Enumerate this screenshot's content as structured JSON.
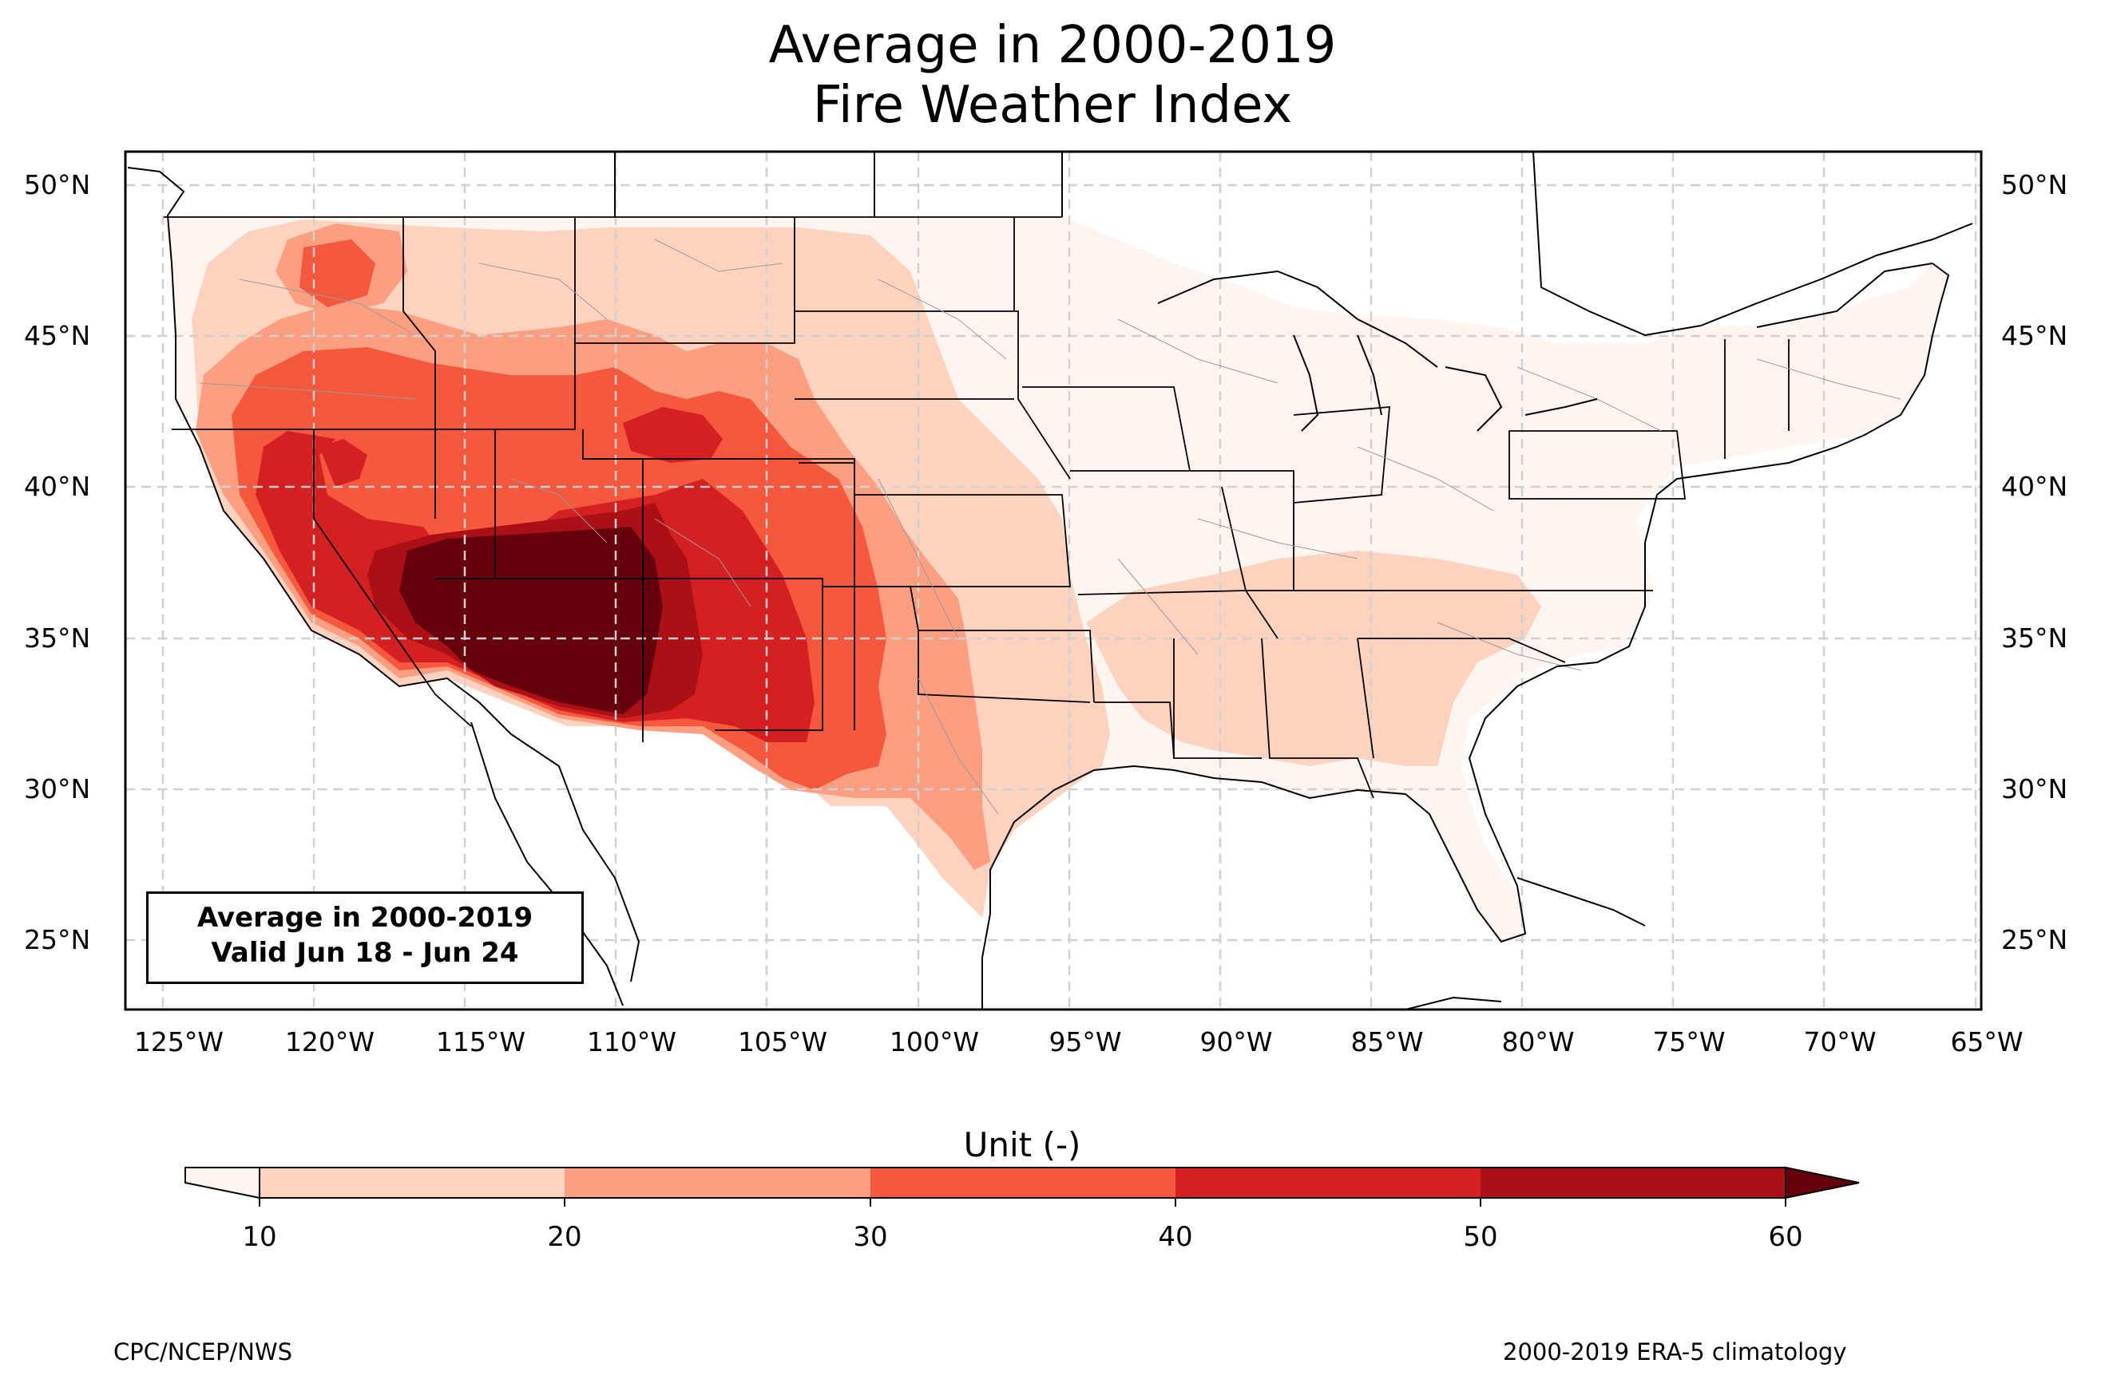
{
  "title": {
    "line1": "Average in 2000-2019",
    "line2": "Fire Weather Index"
  },
  "axes": {
    "x_ticks": [
      "125°W",
      "120°W",
      "115°W",
      "110°W",
      "105°W",
      "100°W",
      "95°W",
      "90°W",
      "85°W",
      "80°W",
      "75°W",
      "70°W",
      "65°W"
    ],
    "y_ticks": [
      "50°N",
      "45°N",
      "40°N",
      "35°N",
      "30°N",
      "25°N"
    ],
    "lon_range": [
      -126.2,
      -64.8
    ],
    "lat_range": [
      22.7,
      51.1
    ]
  },
  "info_box": {
    "line1": "Average in 2000-2019",
    "line2": "Valid Jun 18 - Jun 24"
  },
  "colorbar": {
    "title": "Unit (-)",
    "ticks": [
      "10",
      "20",
      "30",
      "40",
      "50",
      "60"
    ],
    "bins": [
      {
        "range": "<10",
        "color": "#fff5f0"
      },
      {
        "range": "10-20",
        "color": "#fdd2bf"
      },
      {
        "range": "20-30",
        "color": "#fc9f81"
      },
      {
        "range": "30-40",
        "color": "#f6583e"
      },
      {
        "range": "40-50",
        "color": "#d42020"
      },
      {
        "range": "50-60",
        "color": "#aa1016"
      },
      {
        "range": ">60",
        "color": "#67000d"
      }
    ]
  },
  "footer": {
    "left": "CPC/NCEP/NWS",
    "right": "2000-2019 ERA-5 climatology"
  },
  "colors": {
    "gridline": "#d0d0d0",
    "border": "#000000",
    "state_lines": "#000000",
    "county_lines": "#9a9a9a"
  }
}
